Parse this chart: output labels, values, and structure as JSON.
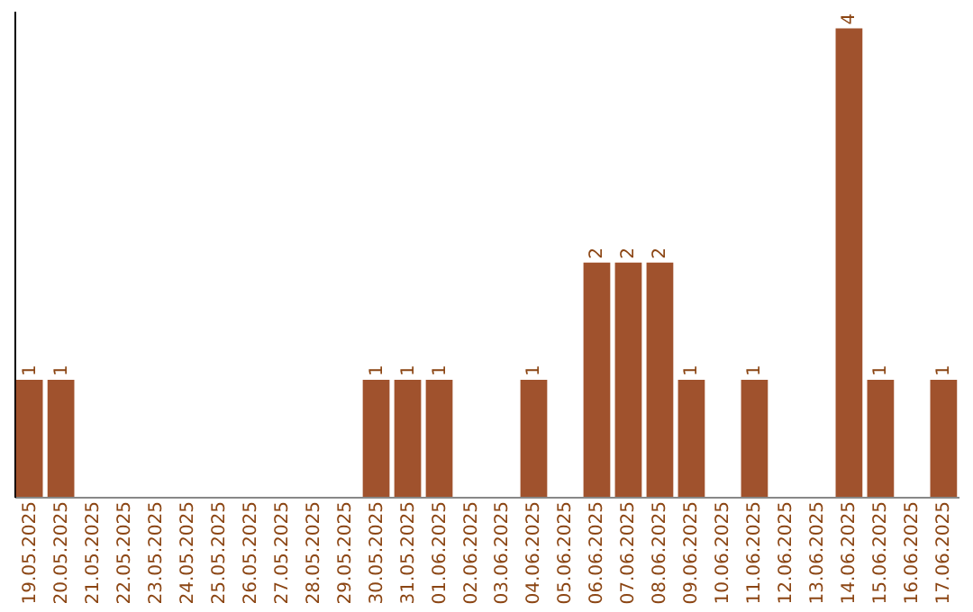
{
  "chart_data": {
    "type": "bar",
    "categories": [
      "19.05.2025",
      "20.05.2025",
      "21.05.2025",
      "22.05.2025",
      "23.05.2025",
      "24.05.2025",
      "25.05.2025",
      "26.05.2025",
      "27.05.2025",
      "28.05.2025",
      "29.05.2025",
      "30.05.2025",
      "31.05.2025",
      "01.06.2025",
      "02.06.2025",
      "03.06.2025",
      "04.06.2025",
      "05.06.2025",
      "06.06.2025",
      "07.06.2025",
      "08.06.2025",
      "09.06.2025",
      "10.06.2025",
      "11.06.2025",
      "12.06.2025",
      "13.06.2025",
      "14.06.2025",
      "15.06.2025",
      "16.06.2025",
      "17.06.2025"
    ],
    "values": [
      1,
      1,
      0,
      0,
      0,
      0,
      0,
      0,
      0,
      0,
      0,
      1,
      1,
      1,
      0,
      0,
      1,
      0,
      2,
      2,
      2,
      1,
      0,
      1,
      0,
      0,
      4,
      1,
      0,
      1
    ],
    "value_labels": [
      "1",
      "1",
      null,
      null,
      null,
      null,
      null,
      null,
      null,
      null,
      null,
      "1",
      "1",
      "1",
      null,
      null,
      "1",
      null,
      "2",
      "2",
      "2",
      "1",
      null,
      "1",
      null,
      null,
      "4",
      "1",
      null,
      "1"
    ],
    "color": "#a0522d",
    "ylim": [
      0,
      4.15
    ],
    "tick_labels": "x",
    "grid": false
  }
}
